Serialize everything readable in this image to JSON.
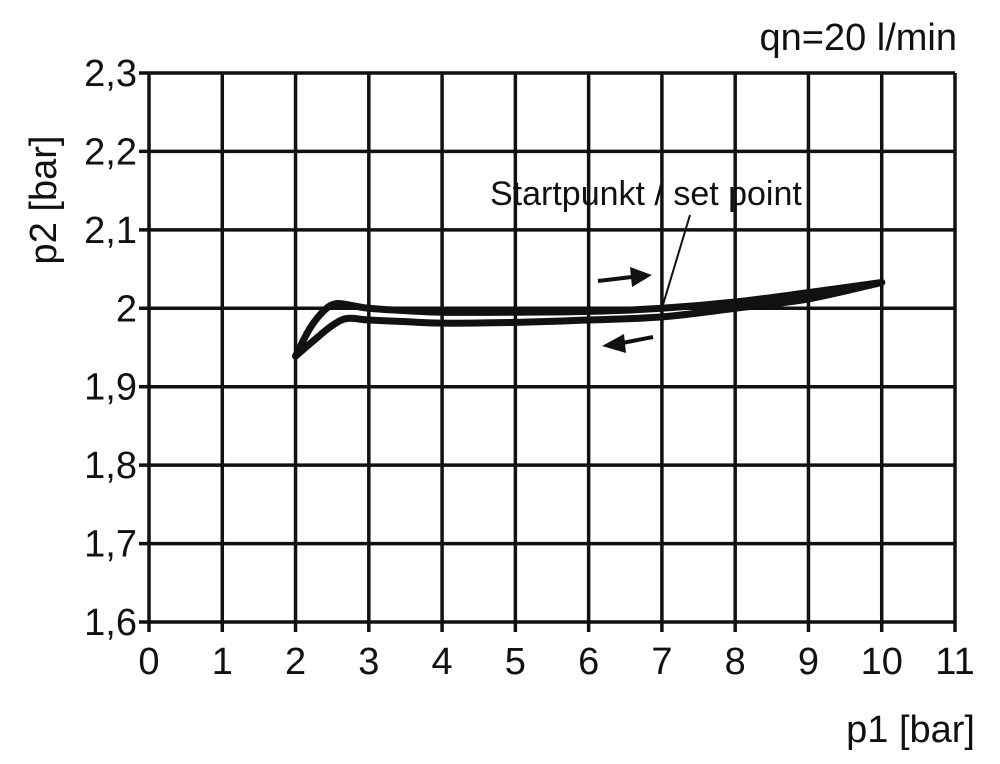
{
  "chart_data": {
    "type": "line",
    "title": "",
    "annotation_top": "qn=20 l/min",
    "xlabel": "p1 [bar]",
    "ylabel": "p2 [bar]",
    "xlim": [
      0,
      11
    ],
    "ylim": [
      1.6,
      2.3
    ],
    "grid": true,
    "x_ticks": [
      "0",
      "1",
      "2",
      "3",
      "4",
      "5",
      "6",
      "7",
      "8",
      "9",
      "10",
      "11"
    ],
    "y_ticks": [
      "1,6",
      "1,7",
      "1,8",
      "1,9",
      "2",
      "2,1",
      "2,2",
      "2,3"
    ],
    "set_point_label": "Startpunkt / set point",
    "set_point": [
      7,
      2.0
    ],
    "series": [
      {
        "direction": "increasing",
        "x": [
          2,
          2.2,
          2.4,
          2.56,
          2.8,
          3,
          3.5,
          4,
          5,
          6,
          7,
          8,
          9,
          10
        ],
        "y": [
          1.939,
          1.975,
          1.998,
          2.006,
          2.003,
          2.0,
          1.997,
          1.995,
          1.995,
          1.996,
          2.0,
          2.008,
          2.02,
          2.033
        ]
      },
      {
        "direction": "decreasing",
        "x": [
          10,
          9,
          8,
          7,
          6,
          5,
          4,
          3.5,
          3,
          2.7,
          2.5,
          2.3,
          2
        ],
        "y": [
          2.033,
          2.012,
          2.0,
          1.989,
          1.985,
          1.982,
          1.981,
          1.983,
          1.985,
          1.987,
          1.978,
          1.963,
          1.939
        ]
      }
    ],
    "line_color": "#111111"
  }
}
